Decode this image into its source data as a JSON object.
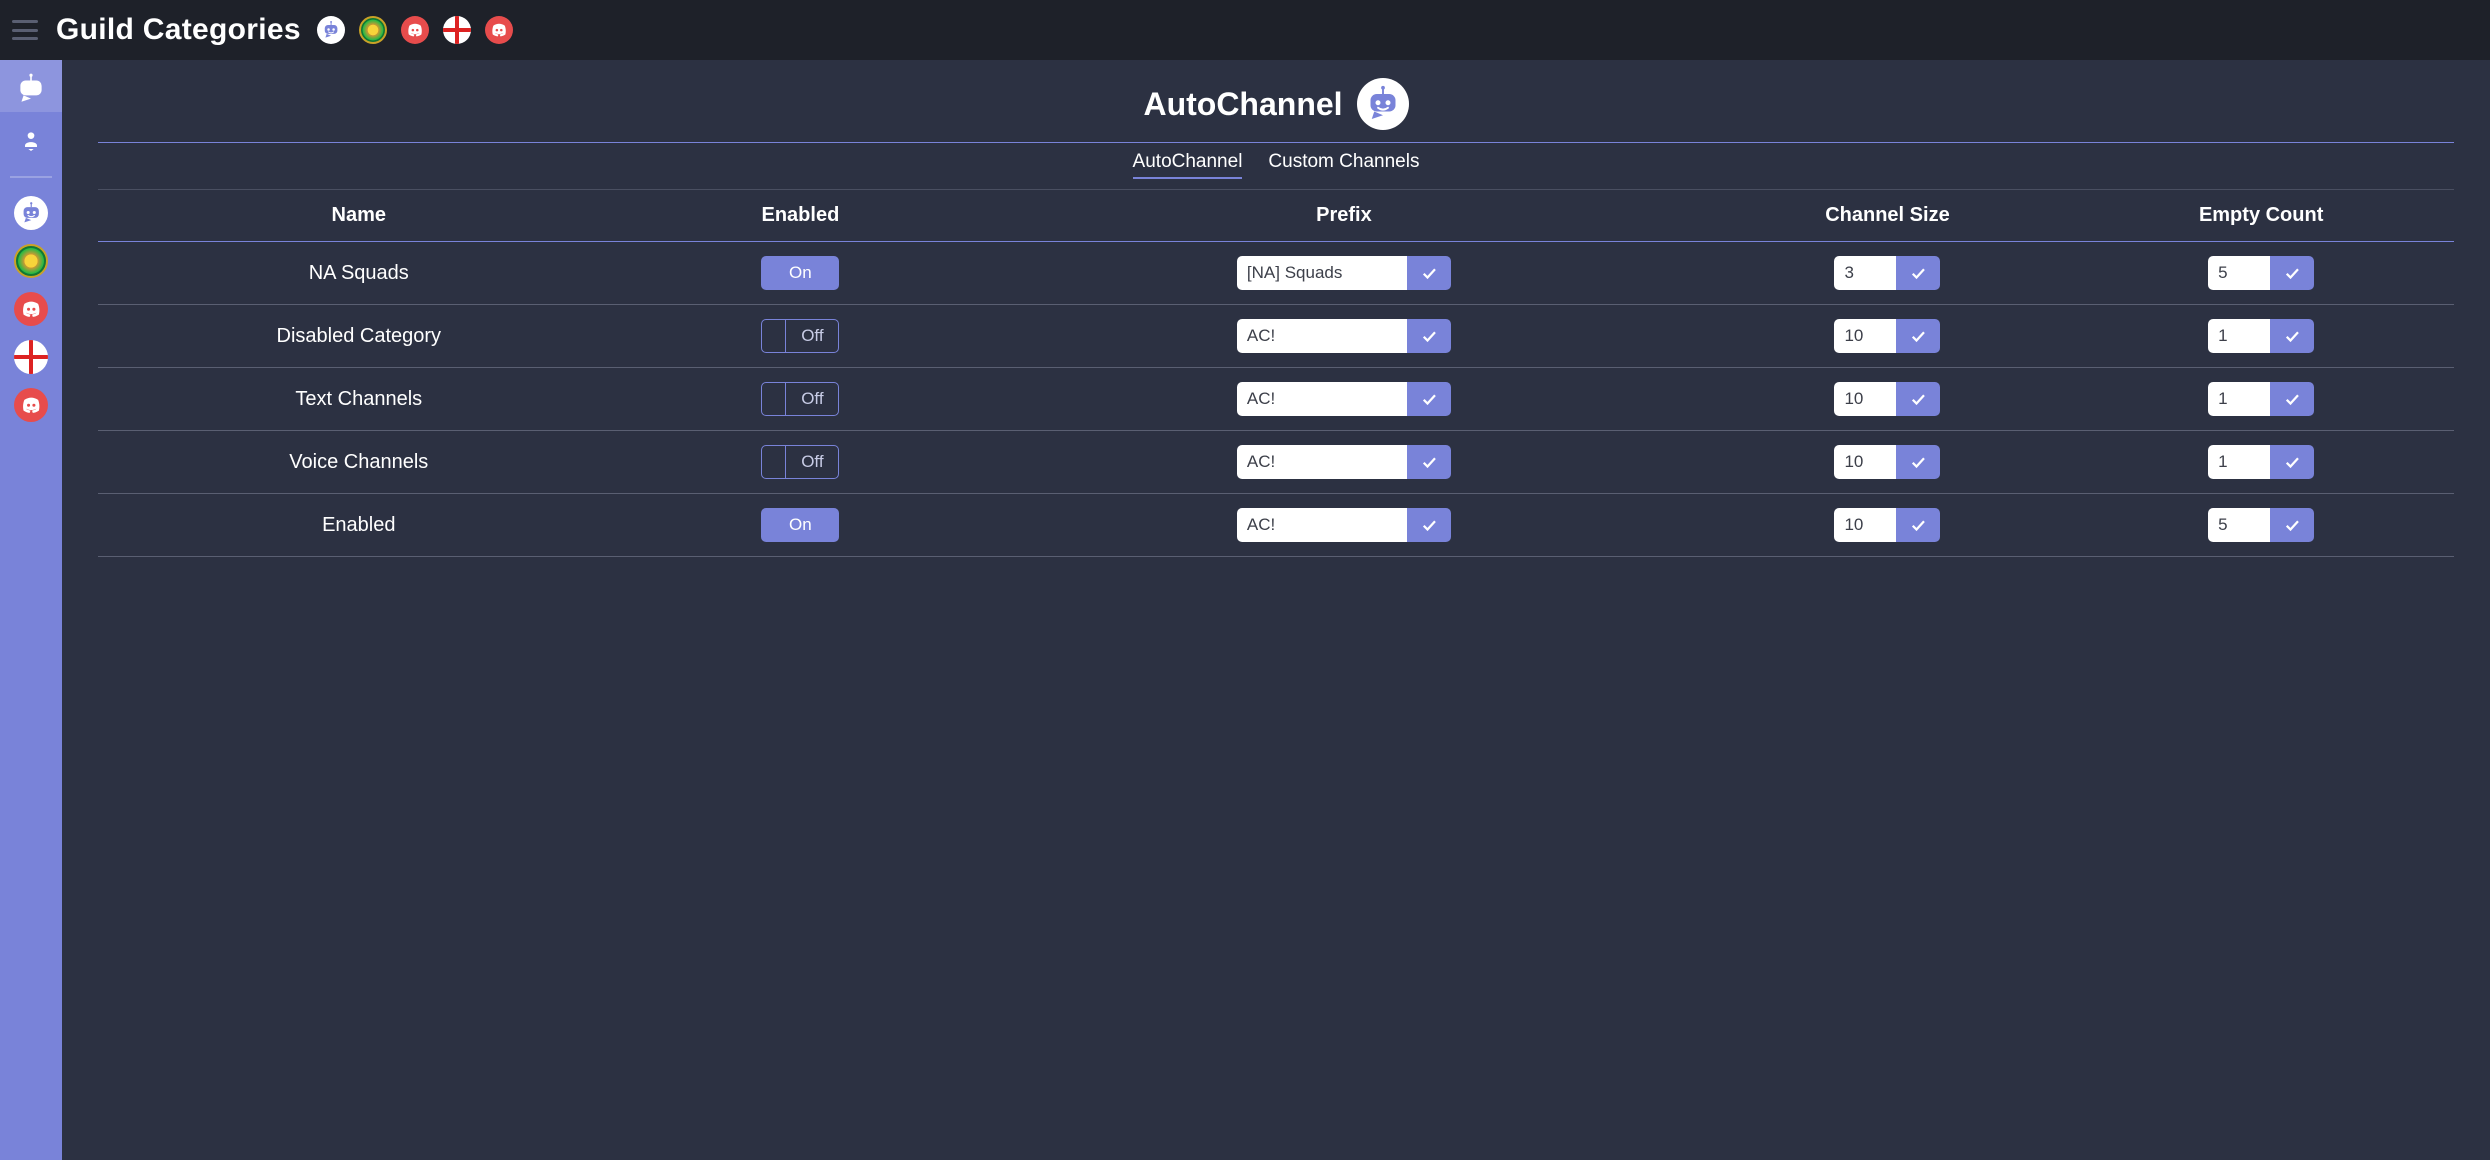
{
  "header": {
    "title": "Guild Categories",
    "icons": [
      "bot",
      "planet",
      "discord",
      "flag",
      "discord"
    ]
  },
  "sidebar": {
    "items": [
      {
        "id": "home",
        "icon": "bot",
        "selected": true
      },
      {
        "id": "profile",
        "icon": "person"
      },
      {
        "id": "g1",
        "icon": "bot-white"
      },
      {
        "id": "g2",
        "icon": "planet"
      },
      {
        "id": "g3",
        "icon": "discord"
      },
      {
        "id": "g4",
        "icon": "flag"
      },
      {
        "id": "g5",
        "icon": "discord"
      }
    ]
  },
  "page": {
    "title": "AutoChannel",
    "tabs": [
      {
        "label": "AutoChannel",
        "active": true
      },
      {
        "label": "Custom Channels",
        "active": false
      }
    ],
    "columns": [
      "Name",
      "Enabled",
      "Prefix",
      "Channel Size",
      "Empty Count"
    ],
    "toggle_on_label": "On",
    "toggle_off_label": "Off",
    "rows": [
      {
        "name": "NA Squads",
        "enabled": true,
        "prefix": "[NA] Squads",
        "channel_size": "3",
        "empty_count": "5"
      },
      {
        "name": "Disabled Category",
        "enabled": false,
        "prefix": "AC!",
        "channel_size": "10",
        "empty_count": "1"
      },
      {
        "name": "Text Channels",
        "enabled": false,
        "prefix": "AC!",
        "channel_size": "10",
        "empty_count": "1"
      },
      {
        "name": "Voice Channels",
        "enabled": false,
        "prefix": "AC!",
        "channel_size": "10",
        "empty_count": "1"
      },
      {
        "name": "Enabled",
        "enabled": true,
        "prefix": "AC!",
        "channel_size": "10",
        "empty_count": "5"
      }
    ]
  },
  "colors": {
    "accent": "#7983d9",
    "discord_red": "#e74c4c",
    "white": "#ffffff"
  }
}
